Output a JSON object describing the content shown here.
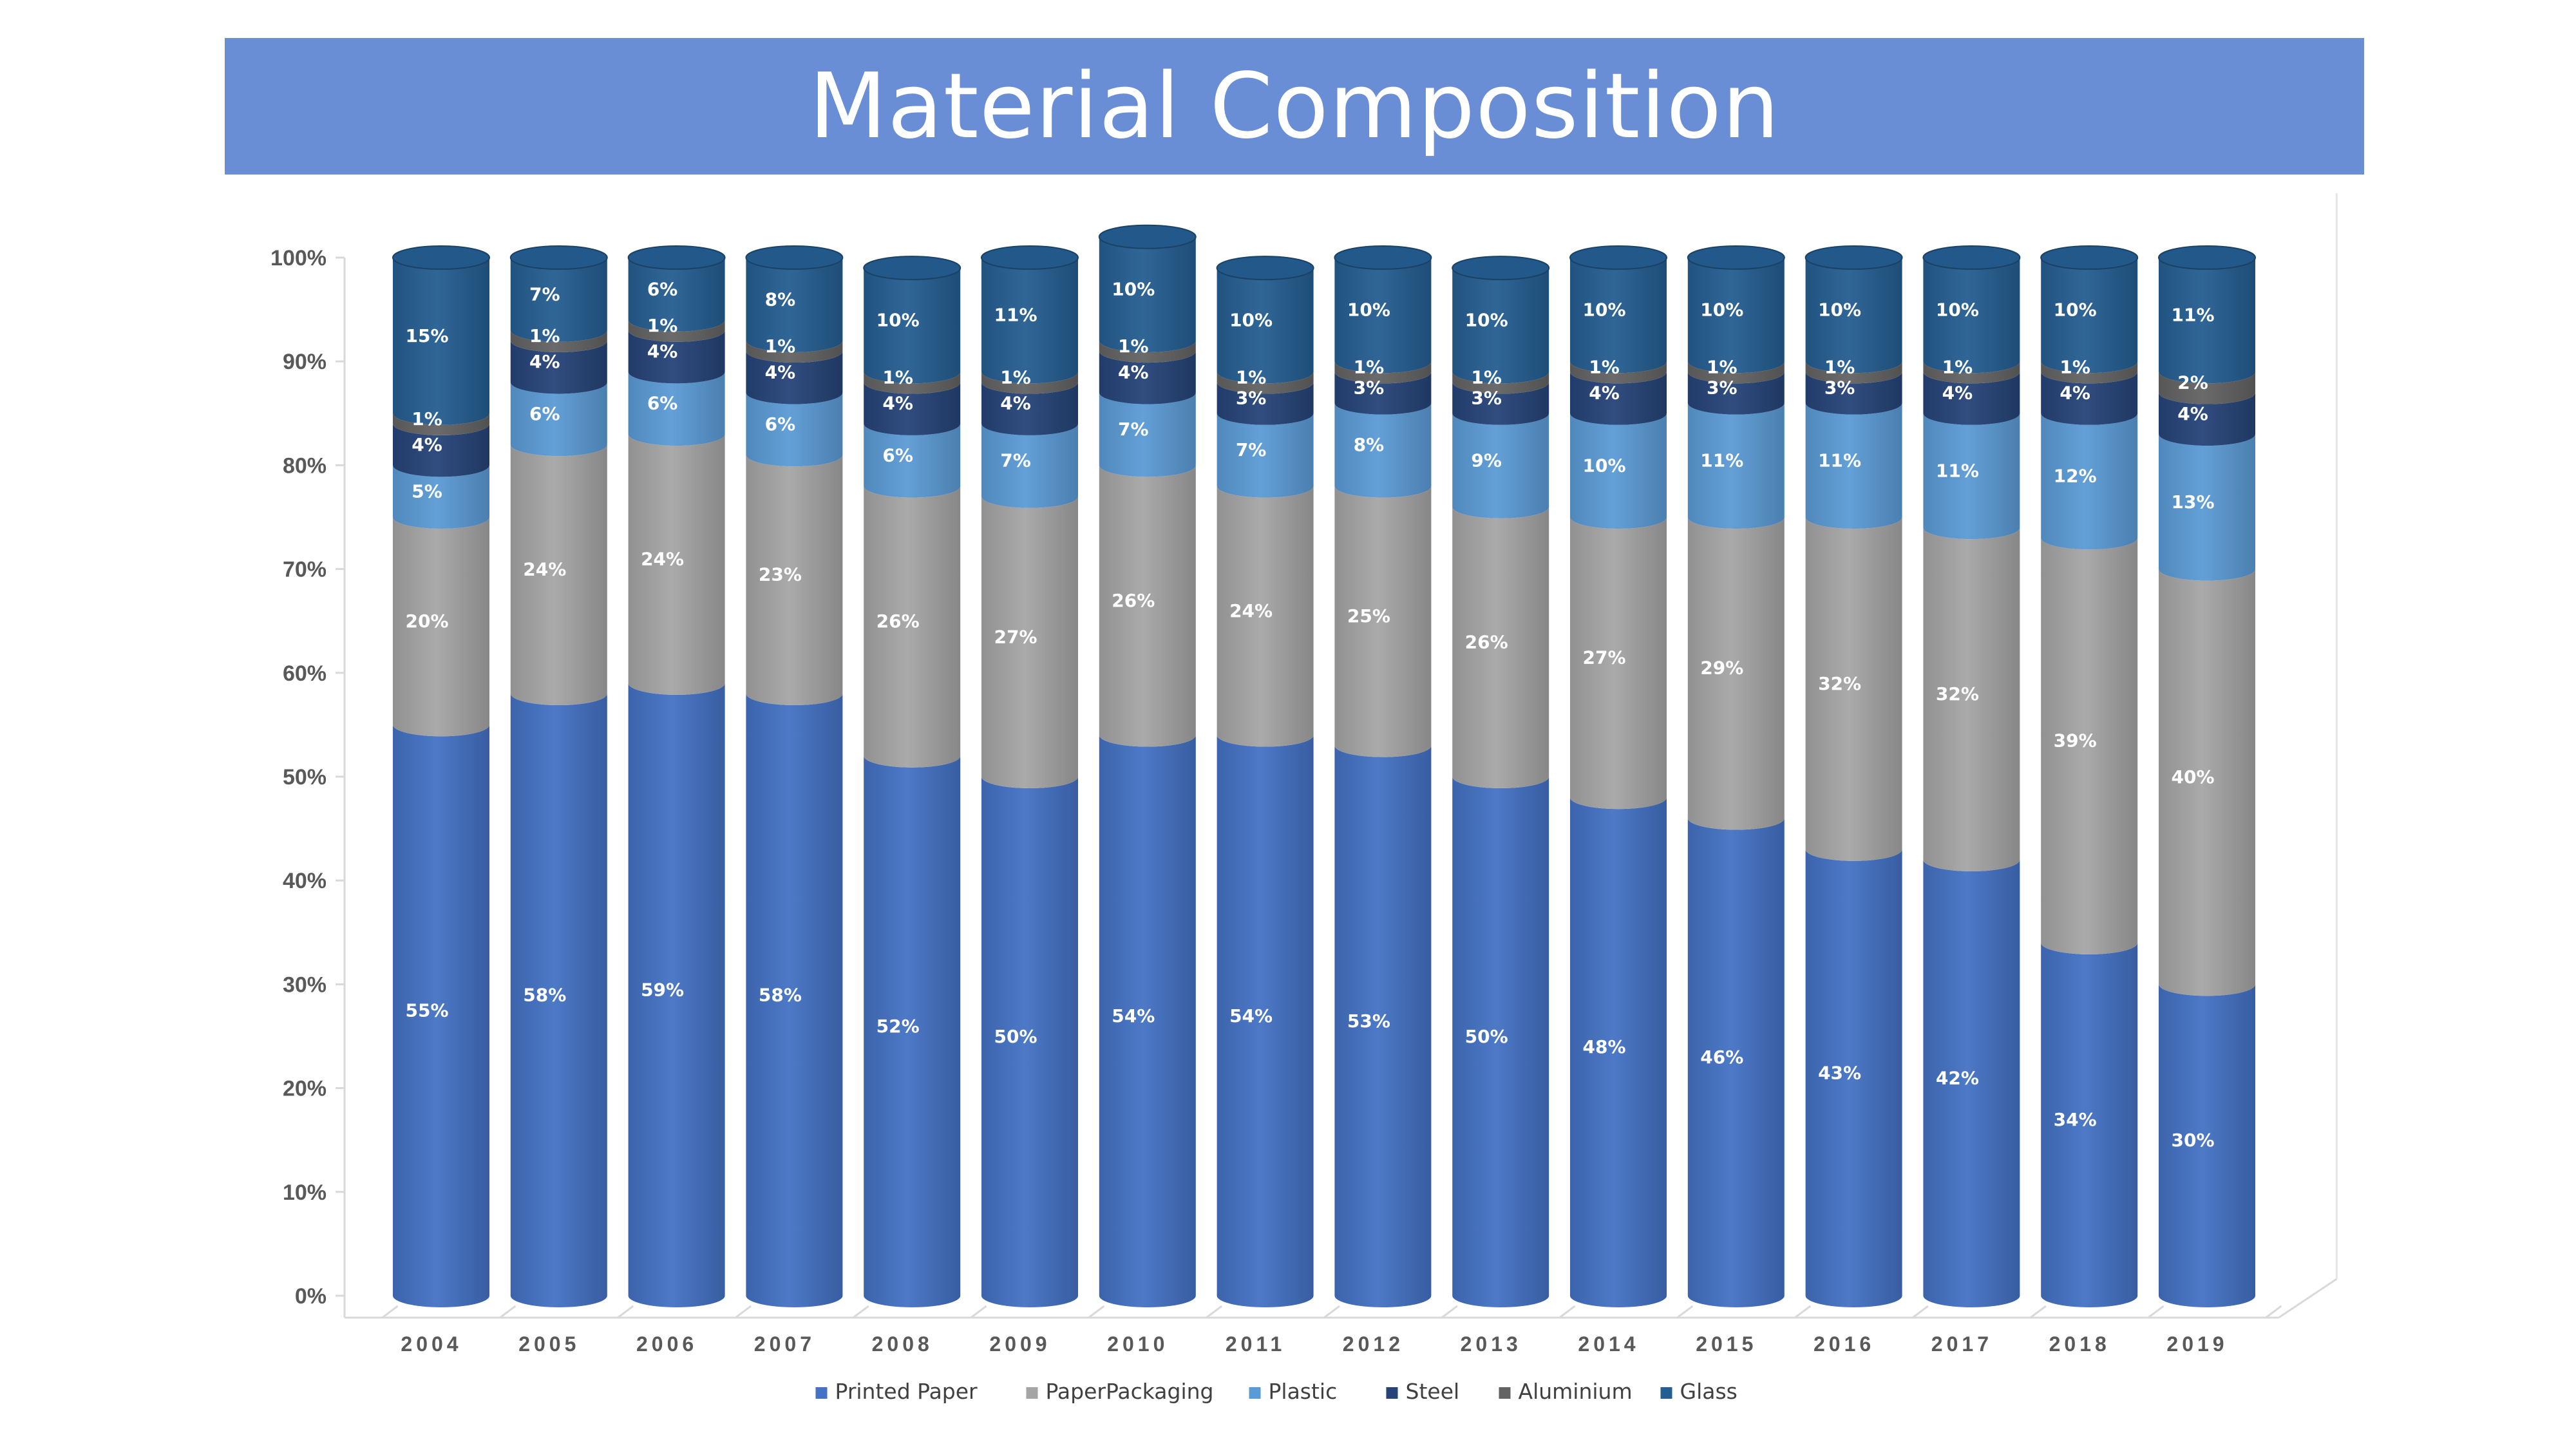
{
  "title": "Material Composition",
  "chart_data": {
    "type": "bar",
    "subtype": "stacked-100-cylinder",
    "title": "Material Composition",
    "xlabel": "",
    "ylabel": "",
    "ylim": [
      0,
      100
    ],
    "yticks": [
      "0%",
      "10%",
      "20%",
      "30%",
      "40%",
      "50%",
      "60%",
      "70%",
      "80%",
      "90%",
      "100%"
    ],
    "legend_position": "bottom",
    "grid": false,
    "categories": [
      "2004",
      "2005",
      "2006",
      "2007",
      "2008",
      "2009",
      "2010",
      "2011",
      "2012",
      "2013",
      "2014",
      "2015",
      "2016",
      "2017",
      "2018",
      "2019"
    ],
    "series": [
      {
        "name": "Printed Paper",
        "color": "#4472c4",
        "values": [
          55,
          58,
          59,
          58,
          52,
          50,
          54,
          54,
          53,
          50,
          48,
          46,
          43,
          42,
          34,
          30
        ]
      },
      {
        "name": "PaperPackaging",
        "color": "#a5a5a5",
        "values": [
          20,
          24,
          24,
          23,
          26,
          27,
          26,
          24,
          25,
          26,
          27,
          29,
          32,
          32,
          39,
          40
        ]
      },
      {
        "name": "Plastic",
        "color": "#5b9bd5",
        "values": [
          5,
          6,
          6,
          6,
          6,
          7,
          7,
          7,
          8,
          9,
          10,
          11,
          11,
          11,
          12,
          13
        ]
      },
      {
        "name": "Steel",
        "color": "#264478",
        "values": [
          4,
          4,
          4,
          4,
          4,
          4,
          4,
          3,
          3,
          3,
          4,
          3,
          3,
          4,
          4,
          4
        ]
      },
      {
        "name": "Aluminium",
        "color": "#636363",
        "values": [
          1,
          1,
          1,
          1,
          1,
          1,
          1,
          1,
          1,
          1,
          1,
          1,
          1,
          1,
          1,
          2
        ]
      },
      {
        "name": "Glass",
        "color": "#255e91",
        "values": [
          15,
          7,
          6,
          8,
          10,
          11,
          10,
          10,
          10,
          10,
          10,
          10,
          10,
          10,
          10,
          11
        ]
      }
    ]
  }
}
